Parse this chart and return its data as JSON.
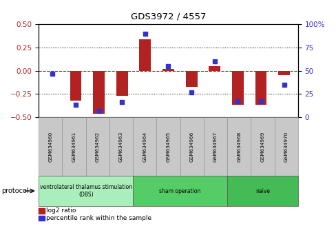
{
  "title": "GDS3972 / 4557",
  "samples": [
    "GSM634960",
    "GSM634961",
    "GSM634962",
    "GSM634963",
    "GSM634964",
    "GSM634965",
    "GSM634966",
    "GSM634967",
    "GSM634968",
    "GSM634969",
    "GSM634970"
  ],
  "log2_ratio": [
    0.0,
    -0.32,
    -0.46,
    -0.27,
    0.34,
    0.02,
    -0.17,
    0.05,
    -0.37,
    -0.37,
    -0.05
  ],
  "percentile_rank": [
    47,
    13,
    7,
    16,
    90,
    55,
    27,
    60,
    17,
    17,
    35
  ],
  "bar_color": "#b22222",
  "dot_color": "#3333cc",
  "ylim_left": [
    -0.5,
    0.5
  ],
  "ylim_right": [
    0,
    100
  ],
  "yticks_left": [
    -0.5,
    -0.25,
    0.0,
    0.25,
    0.5
  ],
  "yticks_right": [
    0,
    25,
    50,
    75,
    100
  ],
  "protocol_groups": [
    {
      "label": "ventrolateral thalamus stimulation\n(DBS)",
      "start": 0,
      "end": 3,
      "color": "#aaeebb"
    },
    {
      "label": "sham operation",
      "start": 4,
      "end": 7,
      "color": "#55cc66"
    },
    {
      "label": "naive",
      "start": 8,
      "end": 10,
      "color": "#44bb55"
    }
  ],
  "protocol_label": "protocol",
  "legend_bar_label": "log2 ratio",
  "legend_dot_label": "percentile rank within the sample",
  "gray_color": "#c8c8c8",
  "bar_width": 0.5
}
